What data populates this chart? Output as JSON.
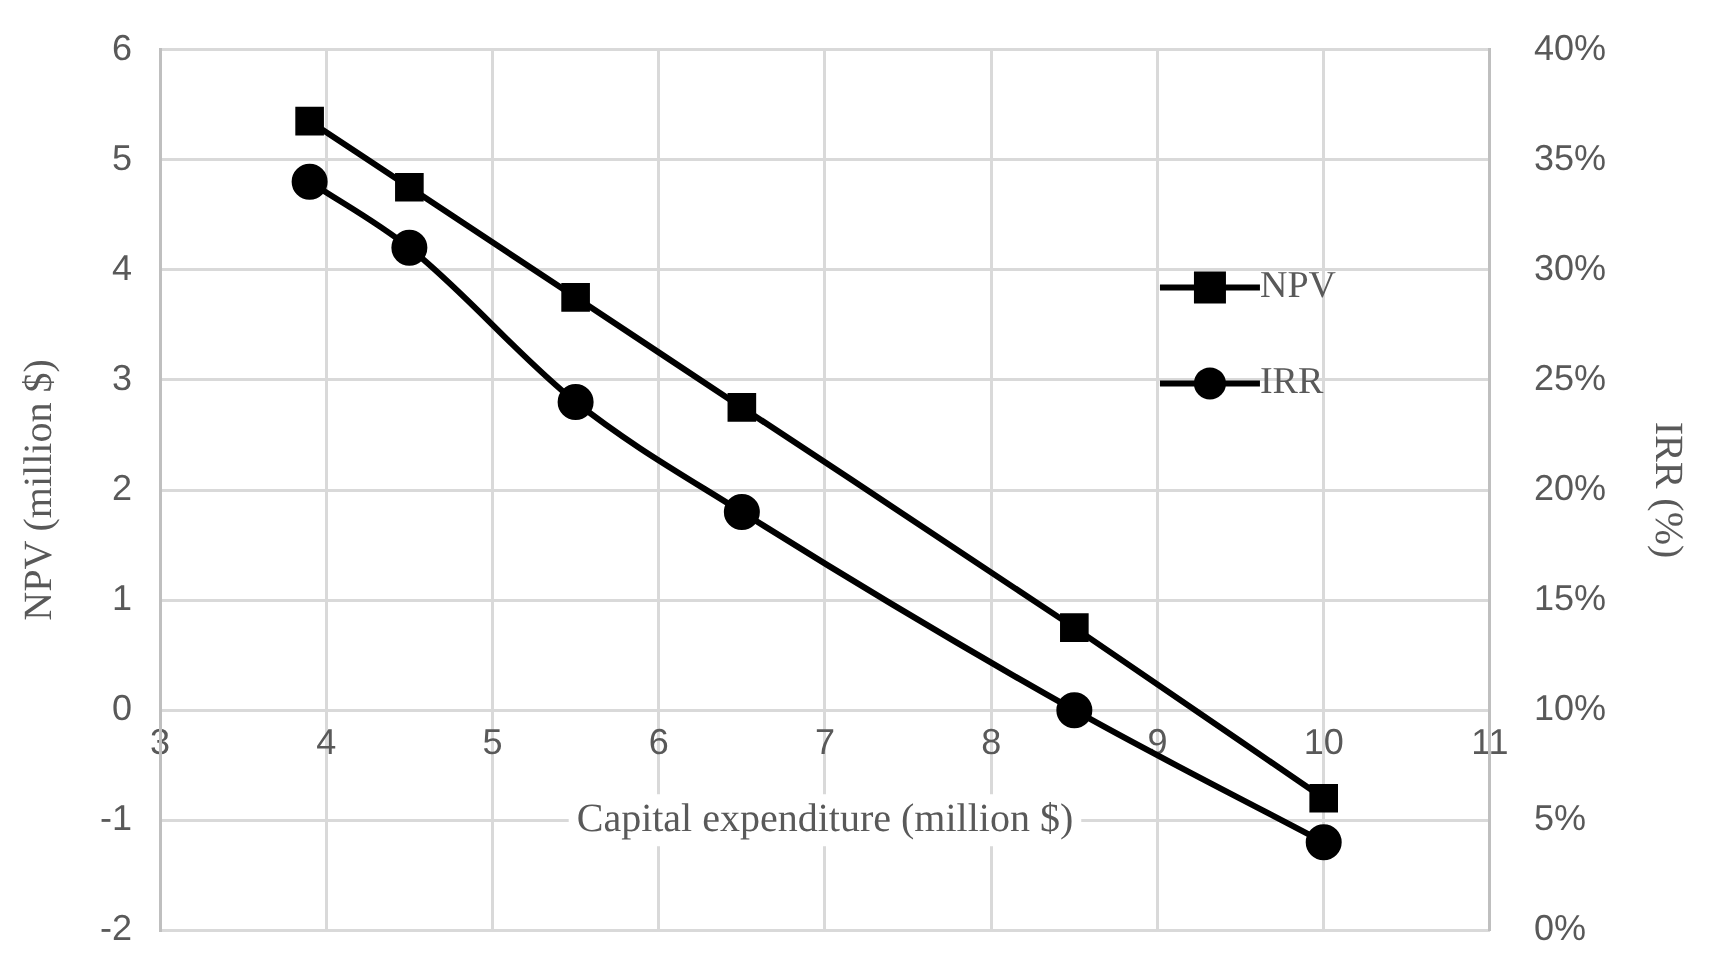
{
  "chart_data": {
    "type": "line",
    "xlabel": "Capital expenditure (million $)",
    "ylabel": "NPV (million $)",
    "y2label": "IRR (%)",
    "xlim": [
      3,
      11
    ],
    "xticks": [
      3,
      4,
      5,
      6,
      7,
      8,
      9,
      10,
      11
    ],
    "ylim": [
      -2,
      6
    ],
    "yticks": [
      -2,
      -1,
      0,
      1,
      2,
      3,
      4,
      5,
      6
    ],
    "y2lim": [
      0,
      40
    ],
    "y2ticks": [
      {
        "value": 0,
        "label": "0%"
      },
      {
        "value": 5,
        "label": "5%"
      },
      {
        "value": 10,
        "label": "10%"
      },
      {
        "value": 15,
        "label": "15%"
      },
      {
        "value": 20,
        "label": "20%"
      },
      {
        "value": 25,
        "label": "25%"
      },
      {
        "value": 30,
        "label": "30%"
      },
      {
        "value": 35,
        "label": "35%"
      },
      {
        "value": 40,
        "label": "40%"
      }
    ],
    "x": [
      3.9,
      4.5,
      5.5,
      6.5,
      8.5,
      10
    ],
    "series": [
      {
        "name": "NPV",
        "color": "#000000",
        "marker": "square",
        "values": [
          5.35,
          4.75,
          3.75,
          2.75,
          0.75,
          -0.8
        ]
      },
      {
        "name": "IRR",
        "color": "#000000",
        "marker": "circle",
        "axis": "y2",
        "values": [
          34,
          31,
          24,
          19,
          10,
          4
        ]
      }
    ],
    "grid": true,
    "legend": "right",
    "line_style": "solid"
  }
}
